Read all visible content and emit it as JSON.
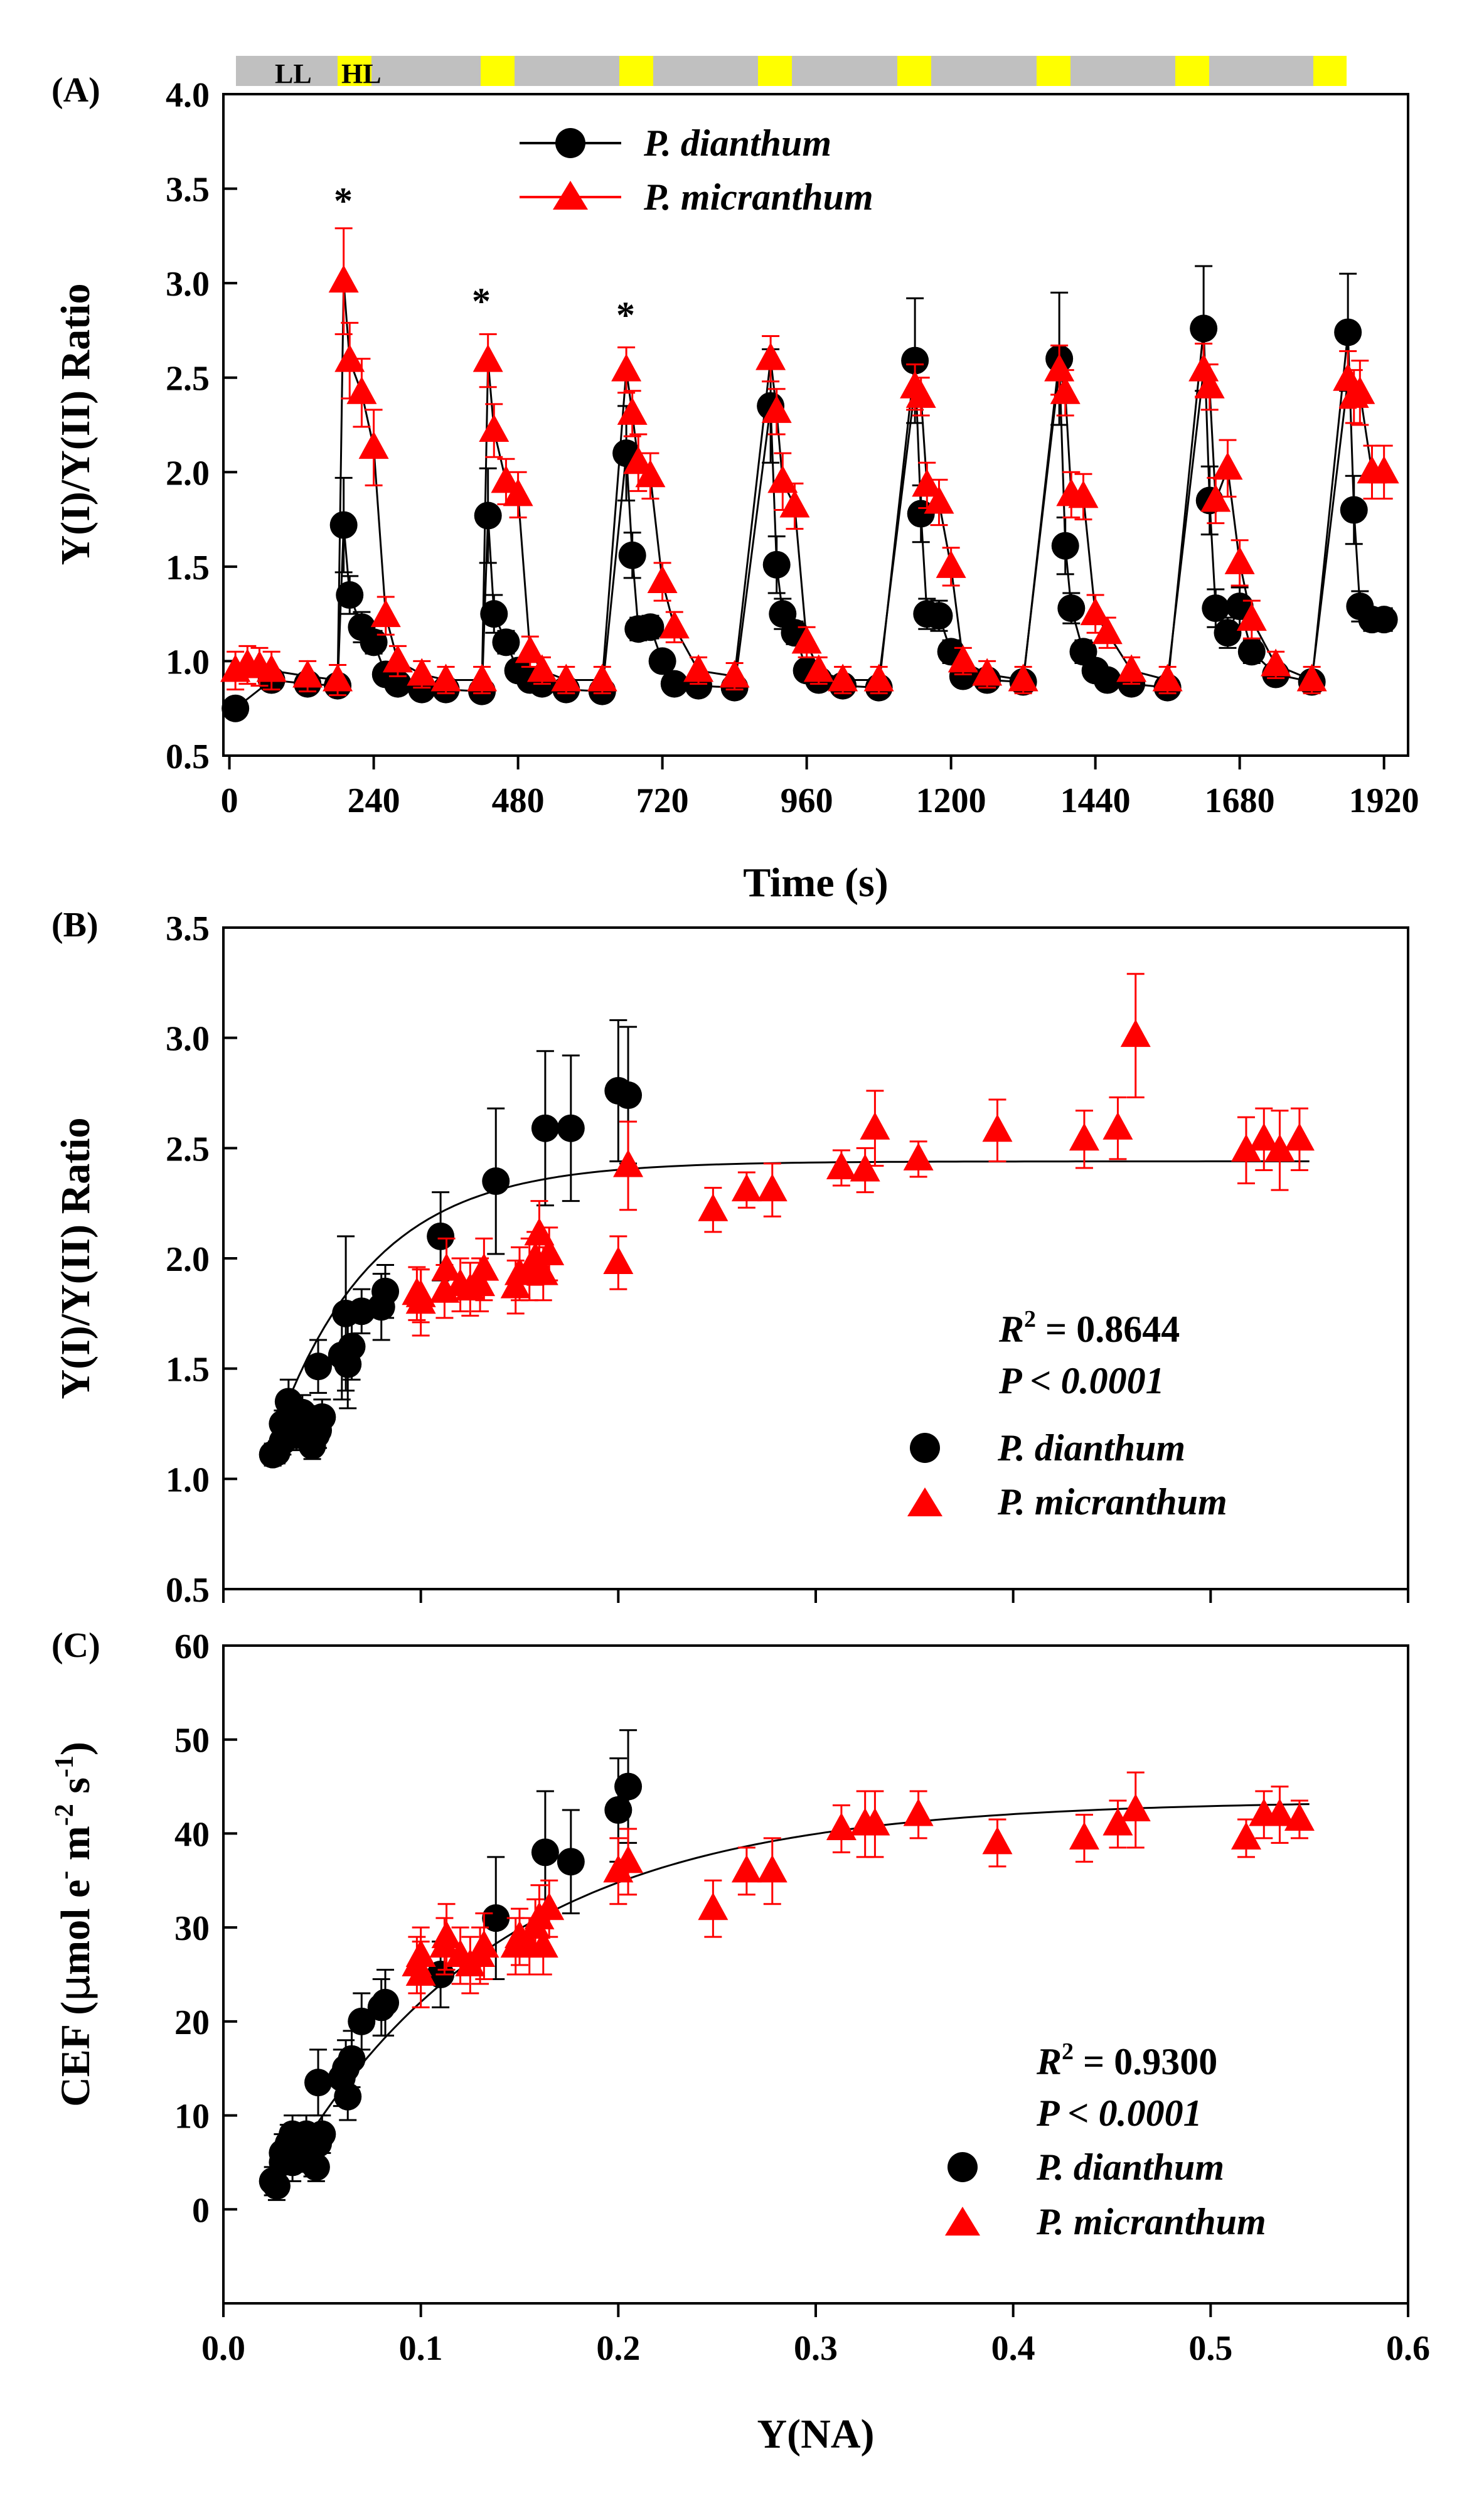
{
  "figure": {
    "light_bar": {
      "ll_label": "LL",
      "hl_label": "HL",
      "ll_color": "#c0c0c0",
      "hl_color": "#ffff00"
    },
    "colors": {
      "dianthum": "#000000",
      "micranthum": "#ff0000",
      "fit": "#000000"
    }
  },
  "chart_data": [
    {
      "panel": "(A)",
      "type": "line",
      "title": "",
      "xlabel": "Time (s)",
      "ylabel": "Y(I)/Y(II) Ratio",
      "xlim": [
        -10,
        1960
      ],
      "ylim": [
        0.5,
        4.0
      ],
      "xticks": [
        "0",
        "240",
        "480",
        "720",
        "960",
        "1200",
        "1440",
        "1680",
        "1920"
      ],
      "yticks": [
        "0.5",
        "1.0",
        "1.5",
        "2.0",
        "2.5",
        "3.0",
        "3.5",
        "4.0"
      ],
      "legend": {
        "position": "top-center",
        "entries": [
          "P. dianthum",
          "P. micranthum"
        ]
      },
      "light_periods": {
        "ll": "LL",
        "hl": "HL"
      },
      "annotations": [
        {
          "text": "*",
          "x": 188
        },
        {
          "text": "*",
          "x": 428
        },
        {
          "text": "*",
          "x": 668
        }
      ],
      "series": [
        {
          "name": "P. dianthum",
          "marker": "circle",
          "x": [
            10,
            70,
            130,
            180,
            190,
            200,
            220,
            240,
            260,
            280,
            320,
            360,
            420,
            430,
            440,
            460,
            480,
            500,
            520,
            560,
            620,
            660,
            670,
            680,
            700,
            720,
            740,
            780,
            840,
            900,
            910,
            920,
            940,
            960,
            980,
            1020,
            1080,
            1140,
            1150,
            1160,
            1180,
            1200,
            1220,
            1260,
            1320,
            1380,
            1390,
            1400,
            1420,
            1440,
            1460,
            1500,
            1560,
            1620,
            1630,
            1640,
            1660,
            1680,
            1700,
            1740,
            1800,
            1860,
            1870,
            1880,
            1900,
            1920
          ],
          "y": [
            0.75,
            0.9,
            0.88,
            0.87,
            1.72,
            1.35,
            1.18,
            1.1,
            0.93,
            0.88,
            0.85,
            0.85,
            0.84,
            1.77,
            1.25,
            1.1,
            0.95,
            0.9,
            0.88,
            0.85,
            0.84,
            2.1,
            1.56,
            1.17,
            1.18,
            1.0,
            0.88,
            0.87,
            0.86,
            2.35,
            1.51,
            1.25,
            1.15,
            0.95,
            0.9,
            0.87,
            0.86,
            2.59,
            1.78,
            1.25,
            1.24,
            1.05,
            0.92,
            0.9,
            0.89,
            2.6,
            1.61,
            1.28,
            1.05,
            0.95,
            0.9,
            0.88,
            0.86,
            2.76,
            1.85,
            1.28,
            1.15,
            1.29,
            1.05,
            0.93,
            0.89,
            2.74,
            1.8,
            1.29,
            1.22,
            1.22
          ],
          "y_err": [
            0.05,
            0.05,
            0.05,
            0.05,
            0.25,
            0.1,
            0.08,
            0.06,
            0.05,
            0.05,
            0.05,
            0.05,
            0.05,
            0.25,
            0.1,
            0.06,
            0.05,
            0.05,
            0.05,
            0.05,
            0.05,
            0.25,
            0.12,
            0.06,
            0.06,
            0.05,
            0.05,
            0.05,
            0.05,
            0.3,
            0.15,
            0.08,
            0.06,
            0.05,
            0.05,
            0.05,
            0.05,
            0.33,
            0.15,
            0.08,
            0.08,
            0.06,
            0.05,
            0.05,
            0.05,
            0.35,
            0.15,
            0.08,
            0.06,
            0.05,
            0.05,
            0.05,
            0.05,
            0.33,
            0.18,
            0.1,
            0.08,
            0.1,
            0.06,
            0.05,
            0.05,
            0.31,
            0.18,
            0.08,
            0.06,
            0.06
          ]
        },
        {
          "name": "P. micranthum",
          "marker": "triangle",
          "x": [
            10,
            30,
            50,
            70,
            130,
            180,
            190,
            200,
            220,
            240,
            260,
            280,
            320,
            360,
            420,
            430,
            440,
            460,
            480,
            500,
            520,
            560,
            620,
            660,
            670,
            680,
            700,
            720,
            740,
            780,
            840,
            900,
            910,
            920,
            940,
            960,
            980,
            1020,
            1080,
            1140,
            1150,
            1160,
            1180,
            1200,
            1220,
            1260,
            1320,
            1380,
            1390,
            1400,
            1420,
            1440,
            1460,
            1500,
            1560,
            1620,
            1630,
            1640,
            1660,
            1680,
            1700,
            1740,
            1800,
            1860,
            1870,
            1880,
            1900,
            1920
          ],
          "y": [
            0.95,
            0.98,
            0.97,
            0.95,
            0.92,
            0.9,
            3.01,
            2.59,
            2.42,
            2.13,
            1.24,
            1.0,
            0.93,
            0.9,
            0.9,
            2.59,
            2.22,
            1.95,
            1.88,
            1.05,
            0.95,
            0.9,
            0.9,
            2.54,
            2.31,
            2.05,
            1.98,
            1.42,
            1.18,
            0.95,
            0.92,
            2.6,
            2.32,
            1.95,
            1.82,
            1.1,
            0.95,
            0.9,
            0.9,
            2.45,
            2.4,
            1.93,
            1.84,
            1.5,
            1.0,
            0.93,
            0.9,
            2.54,
            2.42,
            1.88,
            1.87,
            1.25,
            1.15,
            0.95,
            0.9,
            2.54,
            2.45,
            1.85,
            2.02,
            1.52,
            1.22,
            0.98,
            0.9,
            2.49,
            2.4,
            2.42,
            2.0,
            2.0
          ],
          "y_err": [
            0.1,
            0.1,
            0.1,
            0.1,
            0.08,
            0.08,
            0.28,
            0.2,
            0.18,
            0.2,
            0.1,
            0.08,
            0.07,
            0.07,
            0.07,
            0.14,
            0.14,
            0.12,
            0.12,
            0.08,
            0.07,
            0.07,
            0.07,
            0.12,
            0.12,
            0.15,
            0.12,
            0.1,
            0.08,
            0.07,
            0.07,
            0.12,
            0.12,
            0.15,
            0.12,
            0.08,
            0.07,
            0.07,
            0.07,
            0.12,
            0.1,
            0.12,
            0.12,
            0.1,
            0.07,
            0.07,
            0.07,
            0.13,
            0.12,
            0.12,
            0.12,
            0.1,
            0.08,
            0.07,
            0.07,
            0.14,
            0.12,
            0.12,
            0.15,
            0.12,
            0.1,
            0.07,
            0.07,
            0.15,
            0.14,
            0.17,
            0.14,
            0.14
          ]
        }
      ]
    },
    {
      "panel": "(B)",
      "type": "scatter",
      "title": "",
      "xlabel": "",
      "ylabel": "Y(I)/Y(II) Ratio",
      "xlim": [
        0.0,
        0.6
      ],
      "ylim": [
        0.5,
        3.5
      ],
      "yticks": [
        "0.5",
        "1.0",
        "1.5",
        "2.0",
        "2.5",
        "3.0",
        "3.5"
      ],
      "legend": {
        "position": "bottom-right",
        "entries": [
          "P. dianthum",
          "P. micranthum"
        ]
      },
      "stats": {
        "r2_label": "R",
        "r2_sup": "2",
        "r2_value": " = 0.8644",
        "p_text": "P < 0.0001"
      },
      "fit": {
        "model": "exponential rise to max",
        "y0": 0.35,
        "a": 2.09,
        "k": 20.0,
        "x_from": 0.025,
        "x_to": 0.55
      },
      "series": [
        {
          "name": "P. dianthum",
          "marker": "circle",
          "x": [
            0.025,
            0.027,
            0.03,
            0.03,
            0.033,
            0.035,
            0.035,
            0.037,
            0.04,
            0.042,
            0.045,
            0.047,
            0.048,
            0.048,
            0.05,
            0.06,
            0.062,
            0.063,
            0.065,
            0.07,
            0.08,
            0.082,
            0.11,
            0.138,
            0.163,
            0.176,
            0.2,
            0.205
          ],
          "y": [
            1.11,
            1.12,
            1.17,
            1.25,
            1.35,
            1.22,
            1.28,
            1.2,
            1.3,
            1.25,
            1.15,
            1.2,
            1.51,
            1.22,
            1.28,
            1.56,
            1.75,
            1.52,
            1.6,
            1.76,
            1.78,
            1.85,
            2.1,
            2.35,
            2.59,
            2.59,
            2.76,
            2.74
          ],
          "y_err": [
            0.05,
            0.05,
            0.06,
            0.06,
            0.1,
            0.08,
            0.08,
            0.07,
            0.08,
            0.08,
            0.06,
            0.07,
            0.12,
            0.08,
            0.08,
            0.2,
            0.35,
            0.2,
            0.15,
            0.1,
            0.15,
            0.12,
            0.2,
            0.33,
            0.35,
            0.33,
            0.32,
            0.31
          ]
        },
        {
          "name": "P. micranthum",
          "marker": "triangle",
          "x": [
            0.098,
            0.1,
            0.1,
            0.112,
            0.113,
            0.12,
            0.125,
            0.13,
            0.132,
            0.148,
            0.15,
            0.155,
            0.158,
            0.16,
            0.162,
            0.165,
            0.2,
            0.205,
            0.248,
            0.265,
            0.278,
            0.313,
            0.325,
            0.33,
            0.352,
            0.392,
            0.436,
            0.453,
            0.462,
            0.518,
            0.527,
            0.535,
            0.545
          ],
          "y": [
            1.84,
            1.8,
            1.83,
            1.85,
            1.95,
            1.88,
            1.86,
            1.88,
            1.95,
            1.87,
            1.93,
            1.95,
            2.0,
            2.11,
            1.93,
            2.02,
            1.98,
            2.42,
            2.22,
            2.31,
            2.31,
            2.41,
            2.4,
            2.59,
            2.45,
            2.58,
            2.54,
            2.59,
            3.01,
            2.49,
            2.54,
            2.49,
            2.54
          ],
          "y_err": [
            0.12,
            0.15,
            0.12,
            0.12,
            0.14,
            0.12,
            0.12,
            0.12,
            0.14,
            0.12,
            0.12,
            0.14,
            0.12,
            0.15,
            0.12,
            0.12,
            0.12,
            0.2,
            0.1,
            0.08,
            0.12,
            0.08,
            0.1,
            0.17,
            0.08,
            0.14,
            0.13,
            0.14,
            0.28,
            0.15,
            0.14,
            0.18,
            0.14
          ]
        }
      ]
    },
    {
      "panel": "(C)",
      "type": "scatter",
      "title": "",
      "xlabel": "Y(NA)",
      "ylabel": "CEF (μmol e⁻ m⁻² s⁻¹)",
      "ylabel_parts": {
        "base": "CEF (",
        "mu": "μ",
        "mol": "mol e",
        "minus1": "-",
        "m": " m",
        "minus2": "-2",
        "s": " s",
        "minus3": "-1",
        "close": ")"
      },
      "xlim": [
        0.0,
        0.6
      ],
      "ylim": [
        -10,
        60
      ],
      "xticks": [
        "0.0",
        "0.1",
        "0.2",
        "0.3",
        "0.4",
        "0.5",
        "0.6"
      ],
      "yticks": [
        "0",
        "10",
        "20",
        "30",
        "40",
        "50",
        "60"
      ],
      "legend": {
        "position": "bottom-right",
        "entries": [
          "P. dianthum",
          "P. micranthum"
        ]
      },
      "stats": {
        "r2_label": "R",
        "r2_sup": "2",
        "r2_value": " = 0.9300",
        "p_text": "P < 0.0001"
      },
      "fit": {
        "model": "exponential rise to max",
        "y0": -9.2,
        "a": 52.7,
        "k": 9.0,
        "x_from": 0.025,
        "x_to": 0.55
      },
      "series": [
        {
          "name": "P. dianthum",
          "marker": "circle",
          "x": [
            0.025,
            0.027,
            0.03,
            0.03,
            0.033,
            0.035,
            0.035,
            0.037,
            0.04,
            0.042,
            0.045,
            0.047,
            0.048,
            0.048,
            0.05,
            0.06,
            0.062,
            0.063,
            0.065,
            0.07,
            0.08,
            0.082,
            0.11,
            0.138,
            0.163,
            0.176,
            0.2,
            0.205
          ],
          "y": [
            3,
            2.5,
            5,
            6,
            7,
            8,
            5,
            7,
            6,
            8,
            5,
            4.5,
            13.5,
            7,
            8,
            14,
            15,
            12,
            16,
            20,
            21.5,
            22,
            25,
            31,
            38,
            37,
            42.5,
            45
          ],
          "y_err": [
            1.5,
            1.5,
            2,
            2,
            2,
            2,
            2,
            2,
            2,
            2,
            1.5,
            1.5,
            3.5,
            2,
            2,
            3,
            3,
            2.5,
            3,
            3,
            3,
            3.5,
            3.5,
            6.5,
            6.5,
            5.5,
            5.5,
            6
          ]
        },
        {
          "name": "P. micranthum",
          "marker": "triangle",
          "x": [
            0.098,
            0.1,
            0.1,
            0.112,
            0.113,
            0.12,
            0.125,
            0.13,
            0.132,
            0.148,
            0.15,
            0.155,
            0.158,
            0.16,
            0.162,
            0.165,
            0.2,
            0.205,
            0.248,
            0.265,
            0.278,
            0.313,
            0.325,
            0.33,
            0.352,
            0.392,
            0.436,
            0.453,
            0.462,
            0.518,
            0.527,
            0.535,
            0.545
          ],
          "y": [
            26,
            25,
            27,
            28,
            29,
            27,
            26,
            27,
            28,
            28,
            29,
            28,
            30,
            31,
            28,
            32,
            36,
            37,
            32,
            36,
            36,
            40.5,
            41,
            41,
            42,
            39,
            39.5,
            41,
            42.5,
            39.5,
            42,
            42,
            41.5
          ],
          "y_err": [
            3,
            3.5,
            3,
            3,
            3.5,
            3,
            3,
            3,
            3.5,
            3,
            3,
            3,
            3,
            3.5,
            3,
            3,
            3.5,
            3.5,
            3,
            2.5,
            3.5,
            2.5,
            3.5,
            3.5,
            2.5,
            2.5,
            2.5,
            2.5,
            4,
            2,
            2.5,
            3,
            2
          ]
        }
      ]
    }
  ]
}
